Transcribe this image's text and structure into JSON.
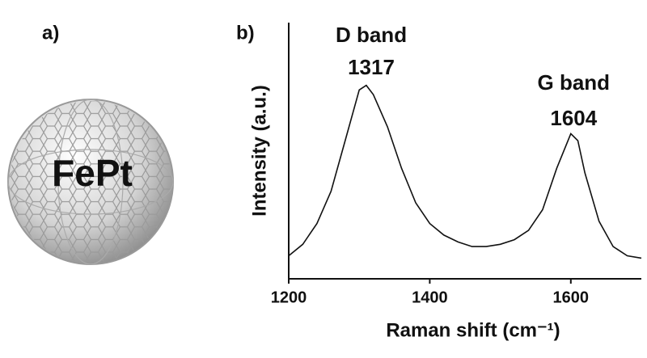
{
  "panel_labels": [
    "a)",
    "b)"
  ],
  "illustration": {
    "label": "FePt"
  },
  "chart_data": {
    "type": "line",
    "xlabel": "Raman shift (cm⁻¹)",
    "ylabel": "Intensity (a.u.)",
    "x": [
      1200,
      1220,
      1240,
      1260,
      1280,
      1300,
      1310,
      1320,
      1340,
      1360,
      1380,
      1400,
      1420,
      1440,
      1460,
      1480,
      1500,
      1520,
      1540,
      1560,
      1580,
      1600,
      1610,
      1620,
      1640,
      1660,
      1680,
      1700
    ],
    "series": [
      {
        "color": "#111111",
        "values": [
          10,
          15,
          24,
          38,
          60,
          82,
          84,
          80,
          66,
          48,
          33,
          24,
          19,
          16,
          14,
          14,
          15,
          17,
          21,
          30,
          48,
          63,
          60,
          46,
          25,
          14,
          10,
          9
        ]
      }
    ],
    "xlim": [
      1200,
      1700
    ],
    "ylim": [
      0,
      100
    ],
    "xticks": [
      1200,
      1400,
      1600
    ],
    "annotations": [
      {
        "text": "D band",
        "x": 1317
      },
      {
        "text": "G band",
        "x": 1604
      }
    ]
  }
}
